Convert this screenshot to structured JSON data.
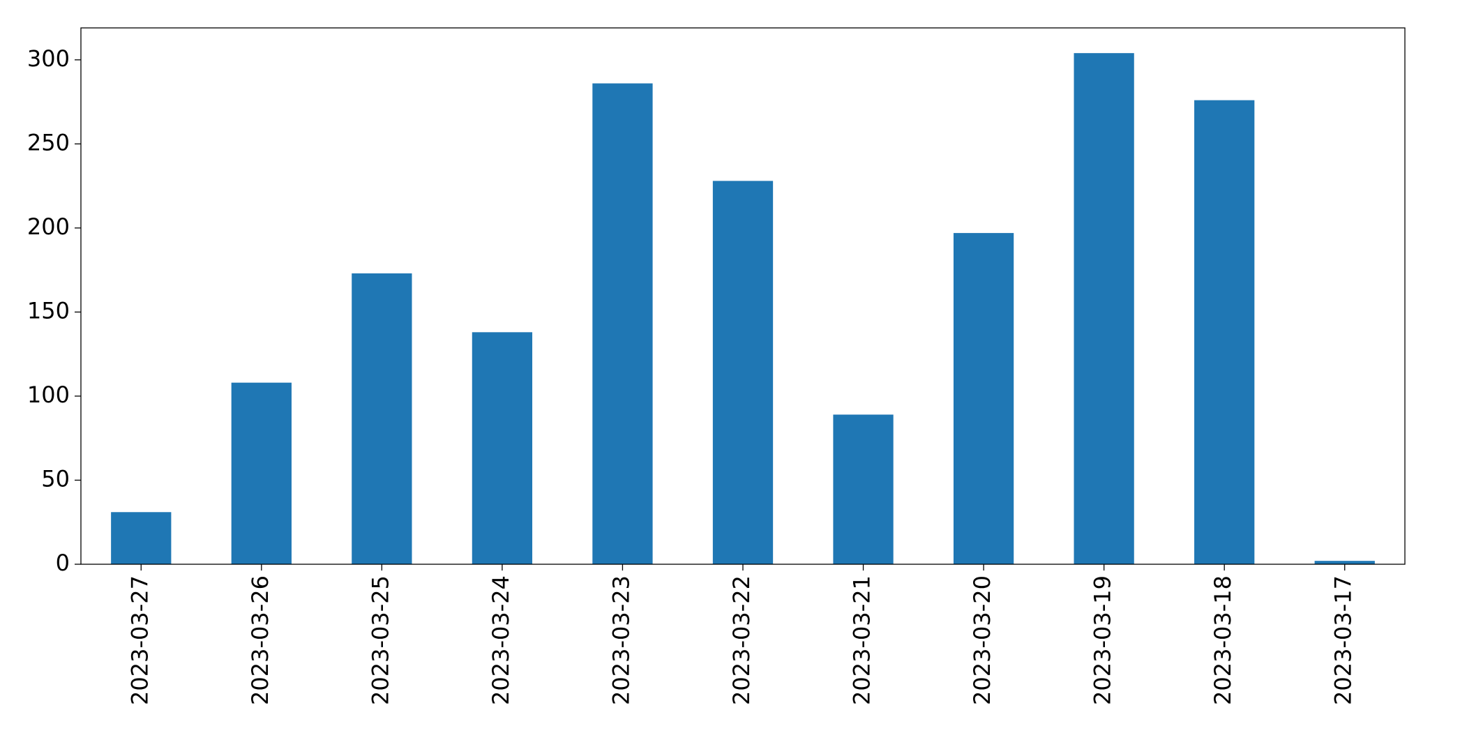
{
  "chart_data": {
    "type": "bar",
    "categories": [
      "2023-03-27",
      "2023-03-26",
      "2023-03-25",
      "2023-03-24",
      "2023-03-23",
      "2023-03-22",
      "2023-03-21",
      "2023-03-20",
      "2023-03-19",
      "2023-03-18",
      "2023-03-17"
    ],
    "values": [
      31,
      108,
      173,
      138,
      286,
      228,
      89,
      197,
      304,
      276,
      2
    ],
    "color": "#1f77b4",
    "ylim": [
      0,
      319
    ],
    "yticks": [
      0,
      50,
      100,
      150,
      200,
      250,
      300
    ],
    "grid": false
  }
}
